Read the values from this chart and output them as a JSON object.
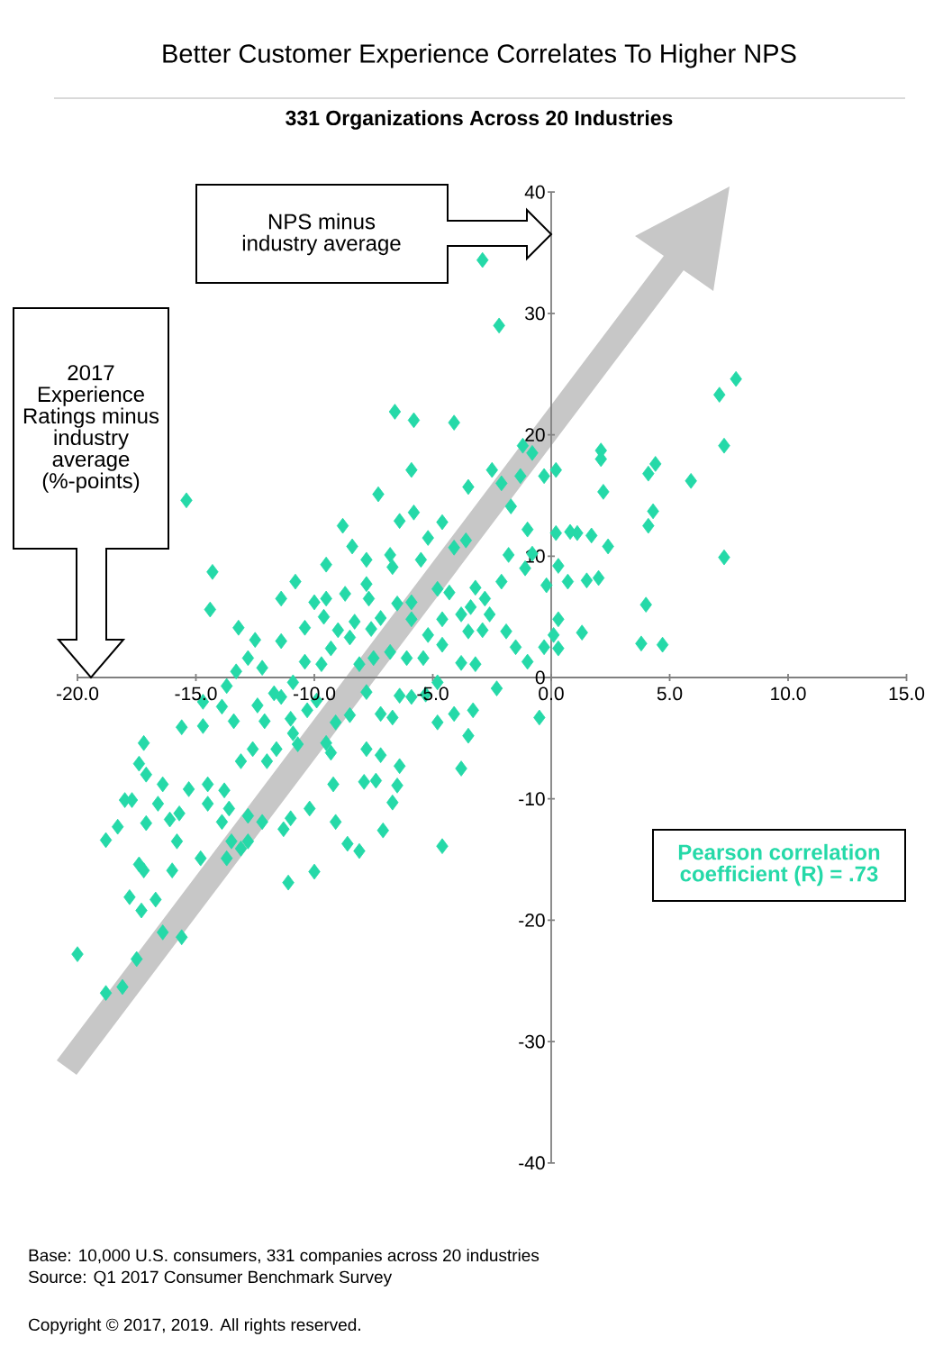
{
  "chart_data": {
    "type": "scatter",
    "title": "Better Customer Experience Correlates To Higher NPS",
    "subtitle": "331 Organizations Across 20 Industries",
    "xlabel": "2017 Experience Ratings minus industry average (%-points)",
    "ylabel": "NPS minus industry average",
    "annotations": [
      "Pearson correlation coefficient (R) = .73",
      "Base: 10,000 U.S. consumers, 331 companies across 20 industries",
      "Source: Q1 2017 Consumer Benchmark Survey",
      "Copyright © 2017, 2019. All rights reserved."
    ],
    "color": "#25d9a8",
    "marker": "diamond",
    "grid": false,
    "xlim": [
      -20,
      15
    ],
    "ylim": [
      -40,
      40
    ],
    "xticks": [
      {
        "value": -20,
        "label": "-20.0"
      },
      {
        "value": -15,
        "label": "-15.0"
      },
      {
        "value": -10,
        "label": "-10.0"
      },
      {
        "value": -5,
        "label": "-5.0"
      },
      {
        "value": 0,
        "label": "0.0"
      },
      {
        "value": 5,
        "label": "5.0"
      },
      {
        "value": 10,
        "label": "10.0"
      },
      {
        "value": 15,
        "label": "15.0"
      }
    ],
    "yticks": [
      -40,
      -30,
      -20,
      -10,
      0,
      10,
      20,
      30,
      40
    ],
    "x": [
      -2.9,
      -2.2,
      -15.4,
      -6.6,
      -5.8,
      -4.1,
      7.8,
      7.1,
      7.3,
      7.3,
      5.9,
      4.4,
      4.1,
      2.1,
      2.1,
      2.2,
      4.3,
      4.1,
      2.4,
      1.7,
      1.1,
      0.8,
      0.2,
      0.3,
      0.7,
      1.5,
      2.0,
      4.0,
      3.8,
      4.7,
      1.3,
      0.3,
      0.3,
      0.1,
      -0.3,
      -0.5,
      -1.2,
      -0.8,
      -0.3,
      0.2,
      -1.3,
      -2.5,
      -2.1,
      -3.5,
      -1.7,
      -5.9,
      -7.3,
      -8.8,
      -8.4,
      -7.8,
      -9.5,
      -14.3,
      -14.4,
      -6.4,
      -5.8,
      -5.2,
      -4.6,
      -3.6,
      -4.1,
      -1.0,
      -0.8,
      -1.1,
      -0.2,
      -1.8,
      -2.8,
      -2.1,
      -3.2,
      -4.3,
      -4.8,
      -5.5,
      -6.7,
      -6.8,
      -7.7,
      -7.8,
      -8.7,
      -9.5,
      -10.0,
      -10.8,
      -11.4,
      -13.2,
      -12.5,
      -11.4,
      -10.4,
      -9.6,
      -9.0,
      -8.3,
      -7.6,
      -7.2,
      -6.5,
      -5.9,
      -5.9,
      -5.2,
      -4.6,
      -3.8,
      -3.4,
      -2.6,
      -3.5,
      -2.9,
      -1.9,
      -1.5,
      -1.0,
      -2.3,
      -3.2,
      -3.8,
      -4.6,
      -4.8,
      -5.4,
      -6.1,
      -6.8,
      -7.5,
      -8.1,
      -8.5,
      -9.3,
      -9.7,
      -10.4,
      -10.9,
      -11.4,
      -11.7,
      -12.2,
      -12.8,
      -13.3,
      -13.7,
      -13.9,
      -14.7,
      -15.6,
      -14.7,
      -13.4,
      -12.4,
      -12.1,
      -11.0,
      -10.3,
      -9.9,
      -9.1,
      -8.5,
      -7.8,
      -7.2,
      -6.7,
      -6.4,
      -5.9,
      -5.3,
      -4.8,
      -4.1,
      -3.3,
      -3.5,
      -3.8,
      -4.6,
      -7.1,
      -7.9,
      -7.4,
      -6.5,
      -6.7,
      -6.4,
      -7.2,
      -7.8,
      -9.1,
      -9.2,
      -10.2,
      -8.6,
      -8.1,
      -10.0,
      -11.1,
      -11.0,
      -11.3,
      -12.2,
      -12.8,
      -12.8,
      -13.5,
      -13.6,
      -13.9,
      -13.8,
      -14.5,
      -14.5,
      -15.3,
      -15.7,
      -16.1,
      -17.1,
      -16.6,
      -16.4,
      -17.1,
      -17.4,
      -17.2,
      -18.0,
      -17.7,
      -18.3,
      -18.8,
      -16.7,
      -17.3,
      -17.8,
      -17.4,
      -17.2,
      -16.0,
      -15.8,
      -14.8,
      -13.7,
      -13.1,
      -15.6,
      -16.4,
      -17.5,
      -18.1,
      -18.8,
      -20.0,
      -11.6,
      -12.6,
      -13.1,
      -12.0,
      -10.7,
      -9.5,
      -9.3,
      -10.9
    ],
    "values": [
      34.4,
      29.0,
      14.6,
      21.9,
      21.2,
      21.0,
      24.6,
      23.3,
      19.1,
      9.9,
      16.2,
      17.6,
      16.8,
      18.7,
      18.0,
      15.3,
      13.7,
      12.5,
      10.8,
      11.7,
      11.9,
      12.0,
      11.9,
      9.2,
      7.9,
      8.0,
      8.2,
      6.0,
      2.8,
      2.7,
      3.7,
      4.8,
      2.4,
      3.5,
      2.5,
      -3.3,
      19.1,
      18.5,
      16.6,
      17.1,
      16.6,
      17.1,
      16.0,
      15.7,
      14.1,
      17.1,
      15.1,
      12.5,
      10.8,
      9.7,
      9.3,
      8.7,
      5.6,
      12.9,
      13.6,
      11.5,
      12.8,
      11.3,
      10.7,
      12.2,
      10.2,
      9.0,
      7.6,
      10.1,
      6.5,
      7.9,
      7.4,
      7.0,
      7.3,
      9.7,
      9.1,
      10.1,
      6.5,
      7.7,
      6.9,
      6.5,
      6.2,
      7.9,
      6.5,
      4.1,
      3.1,
      3.0,
      4.1,
      5.0,
      3.9,
      4.6,
      4.0,
      4.9,
      6.1,
      6.2,
      4.8,
      3.5,
      4.8,
      5.2,
      5.8,
      5.2,
      3.8,
      3.9,
      3.8,
      2.5,
      1.3,
      -0.9,
      1.1,
      1.2,
      2.7,
      -0.4,
      1.6,
      1.6,
      2.1,
      1.6,
      1.1,
      3.3,
      2.4,
      1.1,
      1.3,
      -0.4,
      -1.6,
      -1.3,
      0.8,
      1.6,
      0.5,
      -0.7,
      -2.4,
      -2.0,
      -4.1,
      -4.0,
      -3.6,
      -2.3,
      -3.6,
      -3.4,
      -2.7,
      -1.9,
      -3.7,
      -3.1,
      -1.2,
      -3.0,
      -3.3,
      -1.5,
      -1.6,
      -1.4,
      -3.7,
      -3.0,
      -2.7,
      -4.8,
      -7.5,
      -13.9,
      -12.6,
      -8.6,
      -8.5,
      -8.9,
      -10.3,
      -7.3,
      -6.4,
      -5.9,
      -11.9,
      -8.8,
      -10.8,
      -13.7,
      -14.3,
      -16.0,
      -16.9,
      -11.6,
      -12.5,
      -11.9,
      -11.4,
      -13.5,
      -13.5,
      -10.8,
      -11.9,
      -9.3,
      -10.4,
      -8.8,
      -9.2,
      -11.2,
      -11.7,
      -12.0,
      -10.4,
      -8.8,
      -8.0,
      -7.1,
      -5.4,
      -10.1,
      -10.1,
      -12.3,
      -13.4,
      -18.3,
      -19.2,
      -18.1,
      -15.4,
      -15.9,
      -15.9,
      -13.5,
      -14.9,
      -14.9,
      -14.1,
      -21.4,
      -21.0,
      -23.2,
      -25.5,
      -26.0,
      -22.8,
      -5.9,
      -5.9,
      -6.9,
      -6.9,
      -5.5,
      -5.4,
      -6.2,
      -4.6
    ]
  }
}
